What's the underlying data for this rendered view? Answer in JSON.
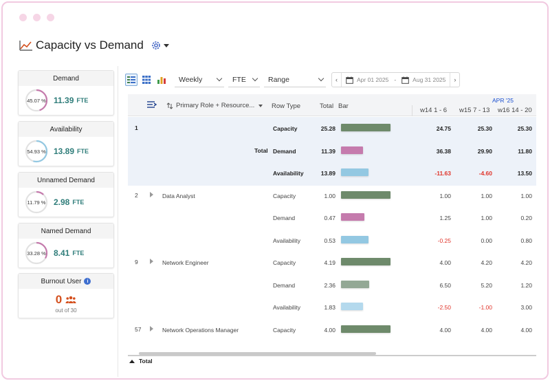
{
  "app": {
    "title": "Capacity vs Demand"
  },
  "colors": {
    "capacity": "#6e8a6b",
    "demand": "#c57bad",
    "availability": "#93c8e2",
    "demand_light": "#93a895",
    "availability_light": "#b4d9ed",
    "accent_teal": "#2f7d7a",
    "burnout": "#d4501e",
    "negative": "#e0342a"
  },
  "kpis": [
    {
      "label": "Demand",
      "percent_label": "45.07 %",
      "percent": 45.07,
      "value": "11.39",
      "unit": "FTE",
      "ring_color": "#c57bad"
    },
    {
      "label": "Availability",
      "percent_label": "54.93 %",
      "percent": 54.93,
      "value": "13.89",
      "unit": "FTE",
      "ring_color": "#93c8e2"
    },
    {
      "label": "Unnamed Demand",
      "percent_label": "11.79 %",
      "percent": 11.79,
      "value": "2.98",
      "unit": "FTE",
      "ring_color": "#c57bad"
    },
    {
      "label": "Named Demand",
      "percent_label": "33.28 %",
      "percent": 33.28,
      "value": "8.41",
      "unit": "FTE",
      "ring_color": "#c57bad"
    }
  ],
  "burnout": {
    "label": "Burnout User",
    "value": "0",
    "of_label": "out of 30",
    "info_icon": "i"
  },
  "toolbar": {
    "period": "Weekly",
    "unit": "FTE",
    "range": "Range",
    "date_from": "Apr 01 2025",
    "date_sep": "-",
    "date_to": "Aug 31 2025",
    "prev": "‹",
    "next": "›"
  },
  "grid": {
    "group_by": "Primary Role + Resource...",
    "headers": {
      "row_type": "Row Type",
      "total": "Total",
      "bar": "Bar"
    },
    "month": "APR '25",
    "weeks": [
      "w14 1 - 6",
      "w15 7 - 13",
      "w16 14 - 20"
    ],
    "rows": [
      {
        "id": "1",
        "name": "",
        "group_label": "Total",
        "bold": true,
        "lines": [
          {
            "type": "Capacity",
            "total": "25.28",
            "bar_frac": 1.0,
            "bar_color": "#6e8a6b",
            "w": [
              "24.75",
              "25.30",
              "25.30"
            ]
          },
          {
            "type": "Demand",
            "total": "11.39",
            "bar_frac": 0.45,
            "bar_color": "#c57bad",
            "w": [
              "36.38",
              "29.90",
              "11.80"
            ]
          },
          {
            "type": "Availability",
            "total": "13.89",
            "bar_frac": 0.55,
            "bar_color": "#93c8e2",
            "w": [
              "-11.63",
              "-4.60",
              "13.50"
            ]
          }
        ]
      },
      {
        "id": "2",
        "name": "Data Analyst",
        "group_label": "",
        "bold": false,
        "lines": [
          {
            "type": "Capacity",
            "total": "1.00",
            "bar_frac": 1.0,
            "bar_color": "#6e8a6b",
            "w": [
              "1.00",
              "1.00",
              "1.00"
            ]
          },
          {
            "type": "Demand",
            "total": "0.47",
            "bar_frac": 0.47,
            "bar_color": "#c57bad",
            "w": [
              "1.25",
              "1.00",
              "0.20"
            ]
          },
          {
            "type": "Availability",
            "total": "0.53",
            "bar_frac": 0.55,
            "bar_color": "#93c8e2",
            "w": [
              "-0.25",
              "0.00",
              "0.80"
            ]
          }
        ]
      },
      {
        "id": "9",
        "name": "Network Engineer",
        "group_label": "",
        "bold": false,
        "lines": [
          {
            "type": "Capacity",
            "total": "4.19",
            "bar_frac": 1.0,
            "bar_color": "#6e8a6b",
            "w": [
              "4.00",
              "4.20",
              "4.20"
            ]
          },
          {
            "type": "Demand",
            "total": "2.36",
            "bar_frac": 0.57,
            "bar_color": "#93a895",
            "w": [
              "6.50",
              "5.20",
              "1.20"
            ]
          },
          {
            "type": "Availability",
            "total": "1.83",
            "bar_frac": 0.44,
            "bar_color": "#b4d9ed",
            "w": [
              "-2.50",
              "-1.00",
              "3.00"
            ]
          }
        ]
      },
      {
        "id": "57",
        "name": "Network Operations Manager",
        "group_label": "",
        "bold": false,
        "lines": [
          {
            "type": "Capacity",
            "total": "4.00",
            "bar_frac": 1.0,
            "bar_color": "#6e8a6b",
            "w": [
              "4.00",
              "4.00",
              "4.00"
            ]
          }
        ]
      }
    ]
  },
  "footer": {
    "label": "Total"
  }
}
